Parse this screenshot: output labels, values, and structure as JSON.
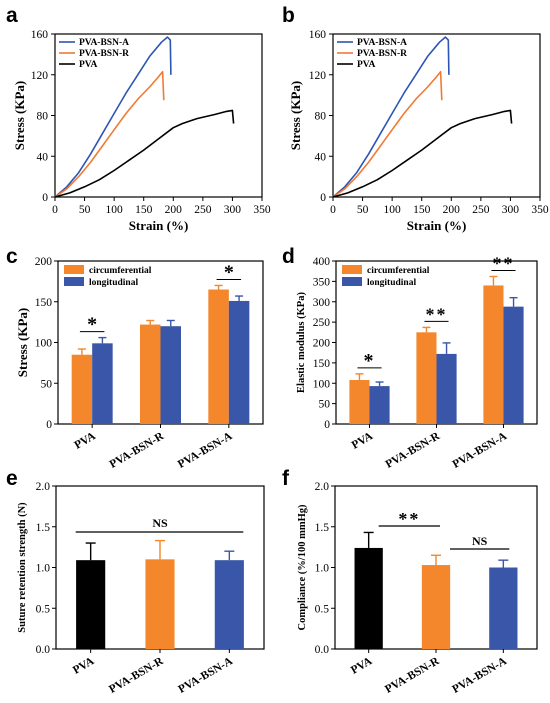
{
  "colors": {
    "black": "#000000",
    "orange": "#f4862b",
    "blue": "#3a56a8",
    "blue_line": "#2d55b4",
    "orange_line": "#f27a32"
  },
  "chart_data": [
    {
      "panel": "a",
      "type": "line",
      "xlabel": "Strain (%)",
      "ylabel": "Stress (KPa)",
      "xlim": [
        0,
        350
      ],
      "ylim": [
        0,
        160
      ],
      "xticks": [
        0,
        50,
        100,
        150,
        200,
        250,
        300,
        350
      ],
      "yticks": [
        0,
        40,
        80,
        120,
        160
      ],
      "legend_position": "top-left",
      "series": [
        {
          "name": "PVA-BSN-A",
          "x": [
            0,
            20,
            40,
            60,
            80,
            100,
            120,
            140,
            160,
            180,
            190,
            195,
            196
          ],
          "y": [
            0,
            10,
            24,
            42,
            62,
            82,
            102,
            120,
            138,
            152,
            157,
            154,
            120
          ]
        },
        {
          "name": "PVA-BSN-R",
          "x": [
            0,
            20,
            40,
            60,
            80,
            100,
            120,
            140,
            160,
            175,
            182,
            184
          ],
          "y": [
            0,
            8,
            20,
            34,
            50,
            66,
            82,
            96,
            108,
            118,
            123,
            95
          ]
        },
        {
          "name": "PVA",
          "x": [
            0,
            25,
            50,
            75,
            100,
            125,
            150,
            175,
            200,
            215,
            240,
            270,
            290,
            300,
            302
          ],
          "y": [
            0,
            4,
            10,
            17,
            26,
            36,
            46,
            57,
            68,
            72,
            77,
            81,
            84,
            85,
            72
          ]
        }
      ]
    },
    {
      "panel": "b",
      "type": "line",
      "xlabel": "Strain (%)",
      "ylabel": "Stress (KPa)",
      "xlim": [
        0,
        350
      ],
      "ylim": [
        0,
        160
      ],
      "xticks": [
        0,
        50,
        100,
        150,
        200,
        250,
        300,
        350
      ],
      "yticks": [
        0,
        40,
        80,
        120,
        160
      ],
      "legend_position": "top-left",
      "series": [
        {
          "name": "PVA-BSN-A",
          "x": [
            0,
            20,
            40,
            60,
            80,
            100,
            120,
            140,
            160,
            180,
            190,
            195,
            196
          ],
          "y": [
            0,
            10,
            24,
            42,
            62,
            82,
            102,
            120,
            138,
            152,
            157,
            154,
            120
          ]
        },
        {
          "name": "PVA-BSN-R",
          "x": [
            0,
            20,
            40,
            60,
            80,
            100,
            120,
            140,
            160,
            175,
            182,
            184
          ],
          "y": [
            0,
            8,
            20,
            34,
            50,
            66,
            82,
            96,
            108,
            118,
            123,
            95
          ]
        },
        {
          "name": "PVA",
          "x": [
            0,
            25,
            50,
            75,
            100,
            125,
            150,
            175,
            200,
            215,
            240,
            270,
            290,
            300,
            302
          ],
          "y": [
            0,
            4,
            10,
            17,
            26,
            36,
            46,
            57,
            68,
            72,
            77,
            81,
            84,
            85,
            72
          ]
        }
      ]
    },
    {
      "panel": "c",
      "type": "bar",
      "ylabel": "Stress (KPa)",
      "ylim": [
        0,
        200
      ],
      "yticks": [
        0,
        50,
        100,
        150,
        200
      ],
      "categories": [
        "PVA",
        "PVA-BSN-R",
        "PVA-BSN-A"
      ],
      "legend_position": "top-left",
      "series": [
        {
          "name": "circumferential",
          "values": [
            85,
            122,
            165
          ],
          "errors": [
            7,
            5,
            5
          ]
        },
        {
          "name": "longitudinal",
          "values": [
            99,
            120,
            151
          ],
          "errors": [
            7,
            7,
            6
          ]
        }
      ],
      "significance": [
        "*",
        "",
        "*"
      ]
    },
    {
      "panel": "d",
      "type": "bar",
      "ylabel": "Elastic modulus (KPa)",
      "ylim": [
        0,
        400
      ],
      "yticks": [
        0,
        50,
        100,
        150,
        200,
        250,
        300,
        350,
        400
      ],
      "categories": [
        "PVA",
        "PVA-BSN-R",
        "PVA-BSN-A"
      ],
      "legend_position": "top-left",
      "series": [
        {
          "name": "circumferential",
          "values": [
            108,
            225,
            340
          ],
          "errors": [
            15,
            12,
            22
          ]
        },
        {
          "name": "longitudinal",
          "values": [
            93,
            172,
            288
          ],
          "errors": [
            10,
            27,
            22
          ]
        }
      ],
      "significance": [
        "*",
        "**",
        "**"
      ]
    },
    {
      "panel": "e",
      "type": "bar",
      "ylabel": "Suture retention strength (N)",
      "ylim": [
        0,
        2.0
      ],
      "yticks": [
        "0.0",
        "0.5",
        "1.0",
        "1.5",
        "2.0"
      ],
      "categories": [
        "PVA",
        "PVA-BSN-R",
        "PVA-BSN-A"
      ],
      "values": [
        1.09,
        1.1,
        1.09
      ],
      "errors": [
        0.21,
        0.23,
        0.11
      ],
      "significance_label": "NS"
    },
    {
      "panel": "f",
      "type": "bar",
      "ylabel": "Compliance (%/100 mmHg)",
      "ylim": [
        0,
        2.0
      ],
      "yticks": [
        "0.0",
        "0.5",
        "1.0",
        "1.5",
        "2.0"
      ],
      "categories": [
        "PVA",
        "PVA-BSN-R",
        "PVA-BSN-A"
      ],
      "values": [
        1.24,
        1.03,
        1.0
      ],
      "errors": [
        0.19,
        0.12,
        0.09
      ],
      "significance": [
        "**",
        "NS"
      ]
    }
  ]
}
